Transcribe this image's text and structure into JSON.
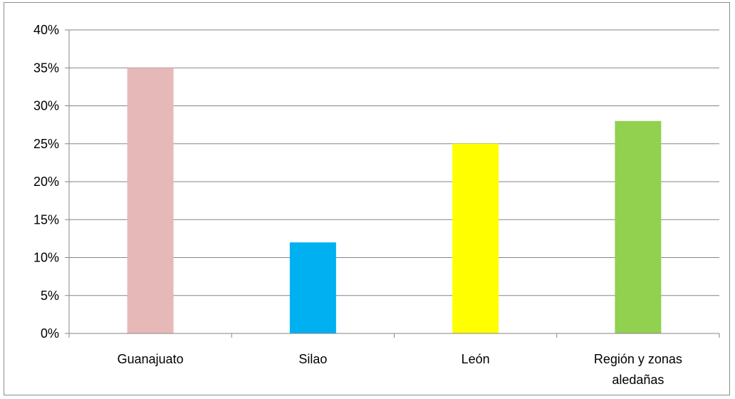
{
  "chart_data": {
    "type": "bar",
    "categories": [
      [
        "Guanajuato"
      ],
      [
        "Silao"
      ],
      [
        "León"
      ],
      [
        "Región y zonas",
        "aledañas"
      ]
    ],
    "values": [
      35,
      12,
      25,
      28
    ],
    "value_format": "percent",
    "ylim": [
      0,
      40
    ],
    "yticks": [
      0,
      5,
      10,
      15,
      20,
      25,
      30,
      35,
      40
    ],
    "ytick_labels": [
      "0%",
      "5%",
      "10%",
      "15%",
      "20%",
      "25%",
      "30%",
      "35%",
      "40%"
    ],
    "colors": [
      "#e6b9b8",
      "#00b0f0",
      "#ffff00",
      "#92d050"
    ],
    "gridlines": true,
    "legend": "none",
    "title": "",
    "xlabel": "",
    "ylabel": ""
  }
}
